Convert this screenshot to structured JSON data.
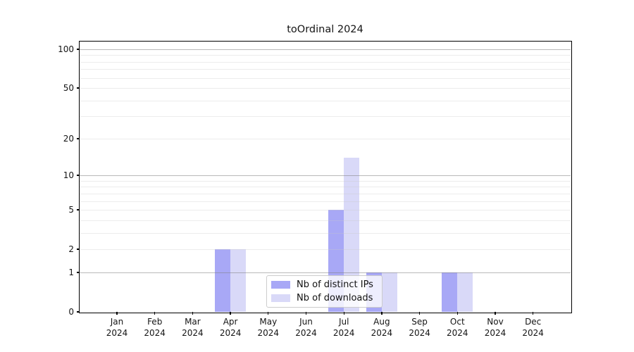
{
  "chart_data": {
    "type": "bar",
    "title": "toOrdinal 2024",
    "categories": [
      "Jan",
      "Feb",
      "Mar",
      "Apr",
      "May",
      "Jun",
      "Jul",
      "Aug",
      "Sep",
      "Oct",
      "Nov",
      "Dec"
    ],
    "year": "2024",
    "series": [
      {
        "name": "Nb of distinct IPs",
        "color": "#a8a8f6",
        "values": [
          0,
          0,
          0,
          2,
          0,
          0,
          5,
          1,
          0,
          1,
          0,
          0
        ]
      },
      {
        "name": "Nb of downloads",
        "color": "#d9d9f8",
        "values": [
          0,
          0,
          0,
          2,
          0,
          0,
          14,
          1,
          0,
          1,
          0,
          0
        ]
      }
    ],
    "xlabel": "",
    "ylabel": "",
    "y_axis": {
      "scale": "log1p",
      "ticks": [
        0,
        1,
        2,
        5,
        10,
        20,
        50,
        100
      ],
      "major_gridlines": [
        1,
        10,
        100
      ],
      "minor_gridlines": [
        2,
        3,
        4,
        5,
        6,
        7,
        8,
        9,
        20,
        30,
        40,
        50,
        60,
        70,
        80,
        90
      ],
      "ylim": [
        0,
        130
      ]
    },
    "legend": {
      "position": "inside-bottom-center"
    }
  }
}
